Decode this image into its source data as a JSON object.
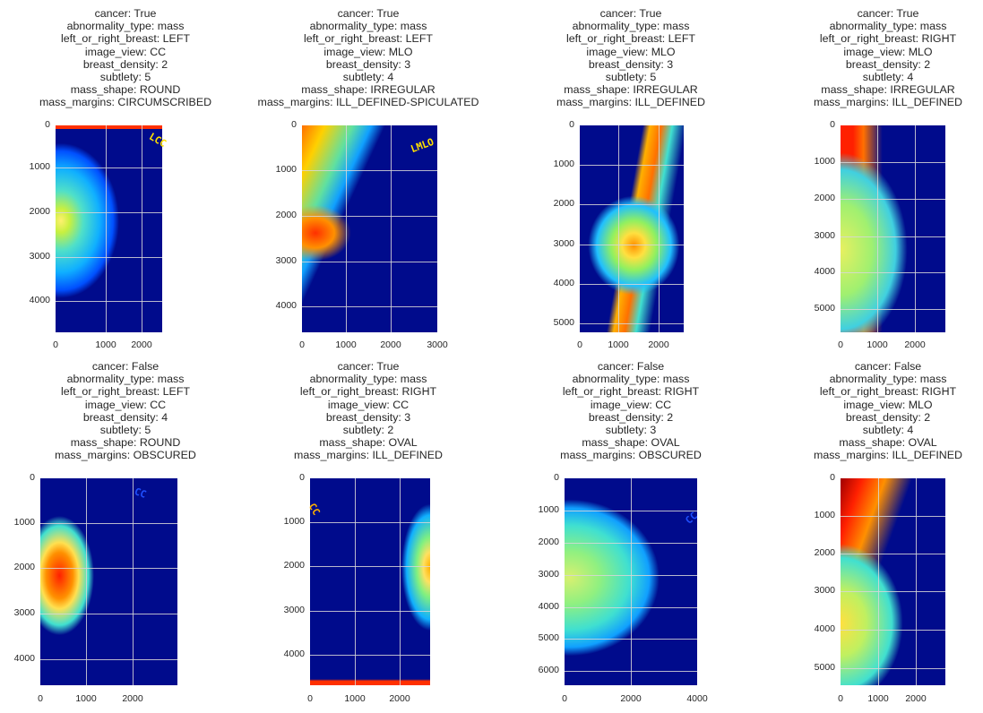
{
  "figure": {
    "panels": [
      {
        "title_lines": [
          "cancer: True",
          "abnormality_type: mass",
          "left_or_right_breast: LEFT",
          "image_view: CC",
          "breast_density: 2",
          "subtlety: 5",
          "mass_shape: ROUND",
          "mass_margins: CIRCUMSCRIBED"
        ],
        "y_ticks": [
          "0",
          "1000",
          "2000",
          "3000",
          "4000"
        ],
        "x_ticks": [
          "0",
          "1000",
          "2000"
        ],
        "image_marker": "LCC",
        "image_description": "jet-colormapped mammogram, left CC view"
      },
      {
        "title_lines": [
          "cancer: True",
          "abnormality_type: mass",
          "left_or_right_breast: LEFT",
          "image_view: MLO",
          "breast_density: 3",
          "subtlety: 4",
          "mass_shape: IRREGULAR",
          "mass_margins: ILL_DEFINED-SPICULATED"
        ],
        "y_ticks": [
          "0",
          "1000",
          "2000",
          "3000",
          "4000"
        ],
        "x_ticks": [
          "0",
          "1000",
          "2000",
          "3000"
        ],
        "image_marker": "LMLO",
        "image_description": "jet-colormapped mammogram, left MLO view"
      },
      {
        "title_lines": [
          "cancer: True",
          "abnormality_type: mass",
          "left_or_right_breast: LEFT",
          "image_view: MLO",
          "breast_density: 3",
          "subtlety: 5",
          "mass_shape: IRREGULAR",
          "mass_margins: ILL_DEFINED"
        ],
        "y_ticks": [
          "0",
          "1000",
          "2000",
          "3000",
          "4000",
          "5000"
        ],
        "x_ticks": [
          "0",
          "1000",
          "2000"
        ],
        "image_marker": "",
        "image_description": "jet-colormapped mammogram, left MLO view"
      },
      {
        "title_lines": [
          "cancer: True",
          "abnormality_type: mass",
          "left_or_right_breast: RIGHT",
          "image_view: MLO",
          "breast_density: 2",
          "subtlety: 4",
          "mass_shape: IRREGULAR",
          "mass_margins: ILL_DEFINED"
        ],
        "y_ticks": [
          "0",
          "1000",
          "2000",
          "3000",
          "4000",
          "5000"
        ],
        "x_ticks": [
          "0",
          "1000",
          "2000"
        ],
        "image_marker": "",
        "image_description": "jet-colormapped mammogram, right MLO view"
      },
      {
        "title_lines": [
          "cancer: False",
          "abnormality_type: mass",
          "left_or_right_breast: LEFT",
          "image_view: CC",
          "breast_density: 4",
          "subtlety: 5",
          "mass_shape: ROUND",
          "mass_margins: OBSCURED"
        ],
        "y_ticks": [
          "0",
          "1000",
          "2000",
          "3000",
          "4000"
        ],
        "x_ticks": [
          "0",
          "1000",
          "2000"
        ],
        "image_marker": "CC",
        "image_description": "jet-colormapped mammogram, left CC view"
      },
      {
        "title_lines": [
          "cancer: True",
          "abnormality_type: mass",
          "left_or_right_breast: RIGHT",
          "image_view: CC",
          "breast_density: 3",
          "subtlety: 2",
          "mass_shape: OVAL",
          "mass_margins: ILL_DEFINED"
        ],
        "y_ticks": [
          "0",
          "1000",
          "2000",
          "3000",
          "4000"
        ],
        "x_ticks": [
          "0",
          "1000",
          "2000"
        ],
        "image_marker": "CC",
        "image_description": "jet-colormapped mammogram, right CC view"
      },
      {
        "title_lines": [
          "cancer: False",
          "abnormality_type: mass",
          "left_or_right_breast: RIGHT",
          "image_view: CC",
          "breast_density: 2",
          "subtlety: 3",
          "mass_shape: OVAL",
          "mass_margins: OBSCURED"
        ],
        "y_ticks": [
          "0",
          "1000",
          "2000",
          "3000",
          "4000",
          "5000",
          "6000"
        ],
        "x_ticks": [
          "0",
          "2000",
          "4000"
        ],
        "image_marker": "CC",
        "image_description": "jet-colormapped mammogram, right CC view"
      },
      {
        "title_lines": [
          "cancer: False",
          "abnormality_type: mass",
          "left_or_right_breast: RIGHT",
          "image_view: MLO",
          "breast_density: 2",
          "subtlety: 4",
          "mass_shape: OVAL",
          "mass_margins: ILL_DEFINED"
        ],
        "y_ticks": [
          "0",
          "1000",
          "2000",
          "3000",
          "4000",
          "5000"
        ],
        "x_ticks": [
          "0",
          "1000",
          "2000"
        ],
        "image_marker": "",
        "image_description": "jet-colormapped mammogram, right MLO view"
      }
    ]
  }
}
